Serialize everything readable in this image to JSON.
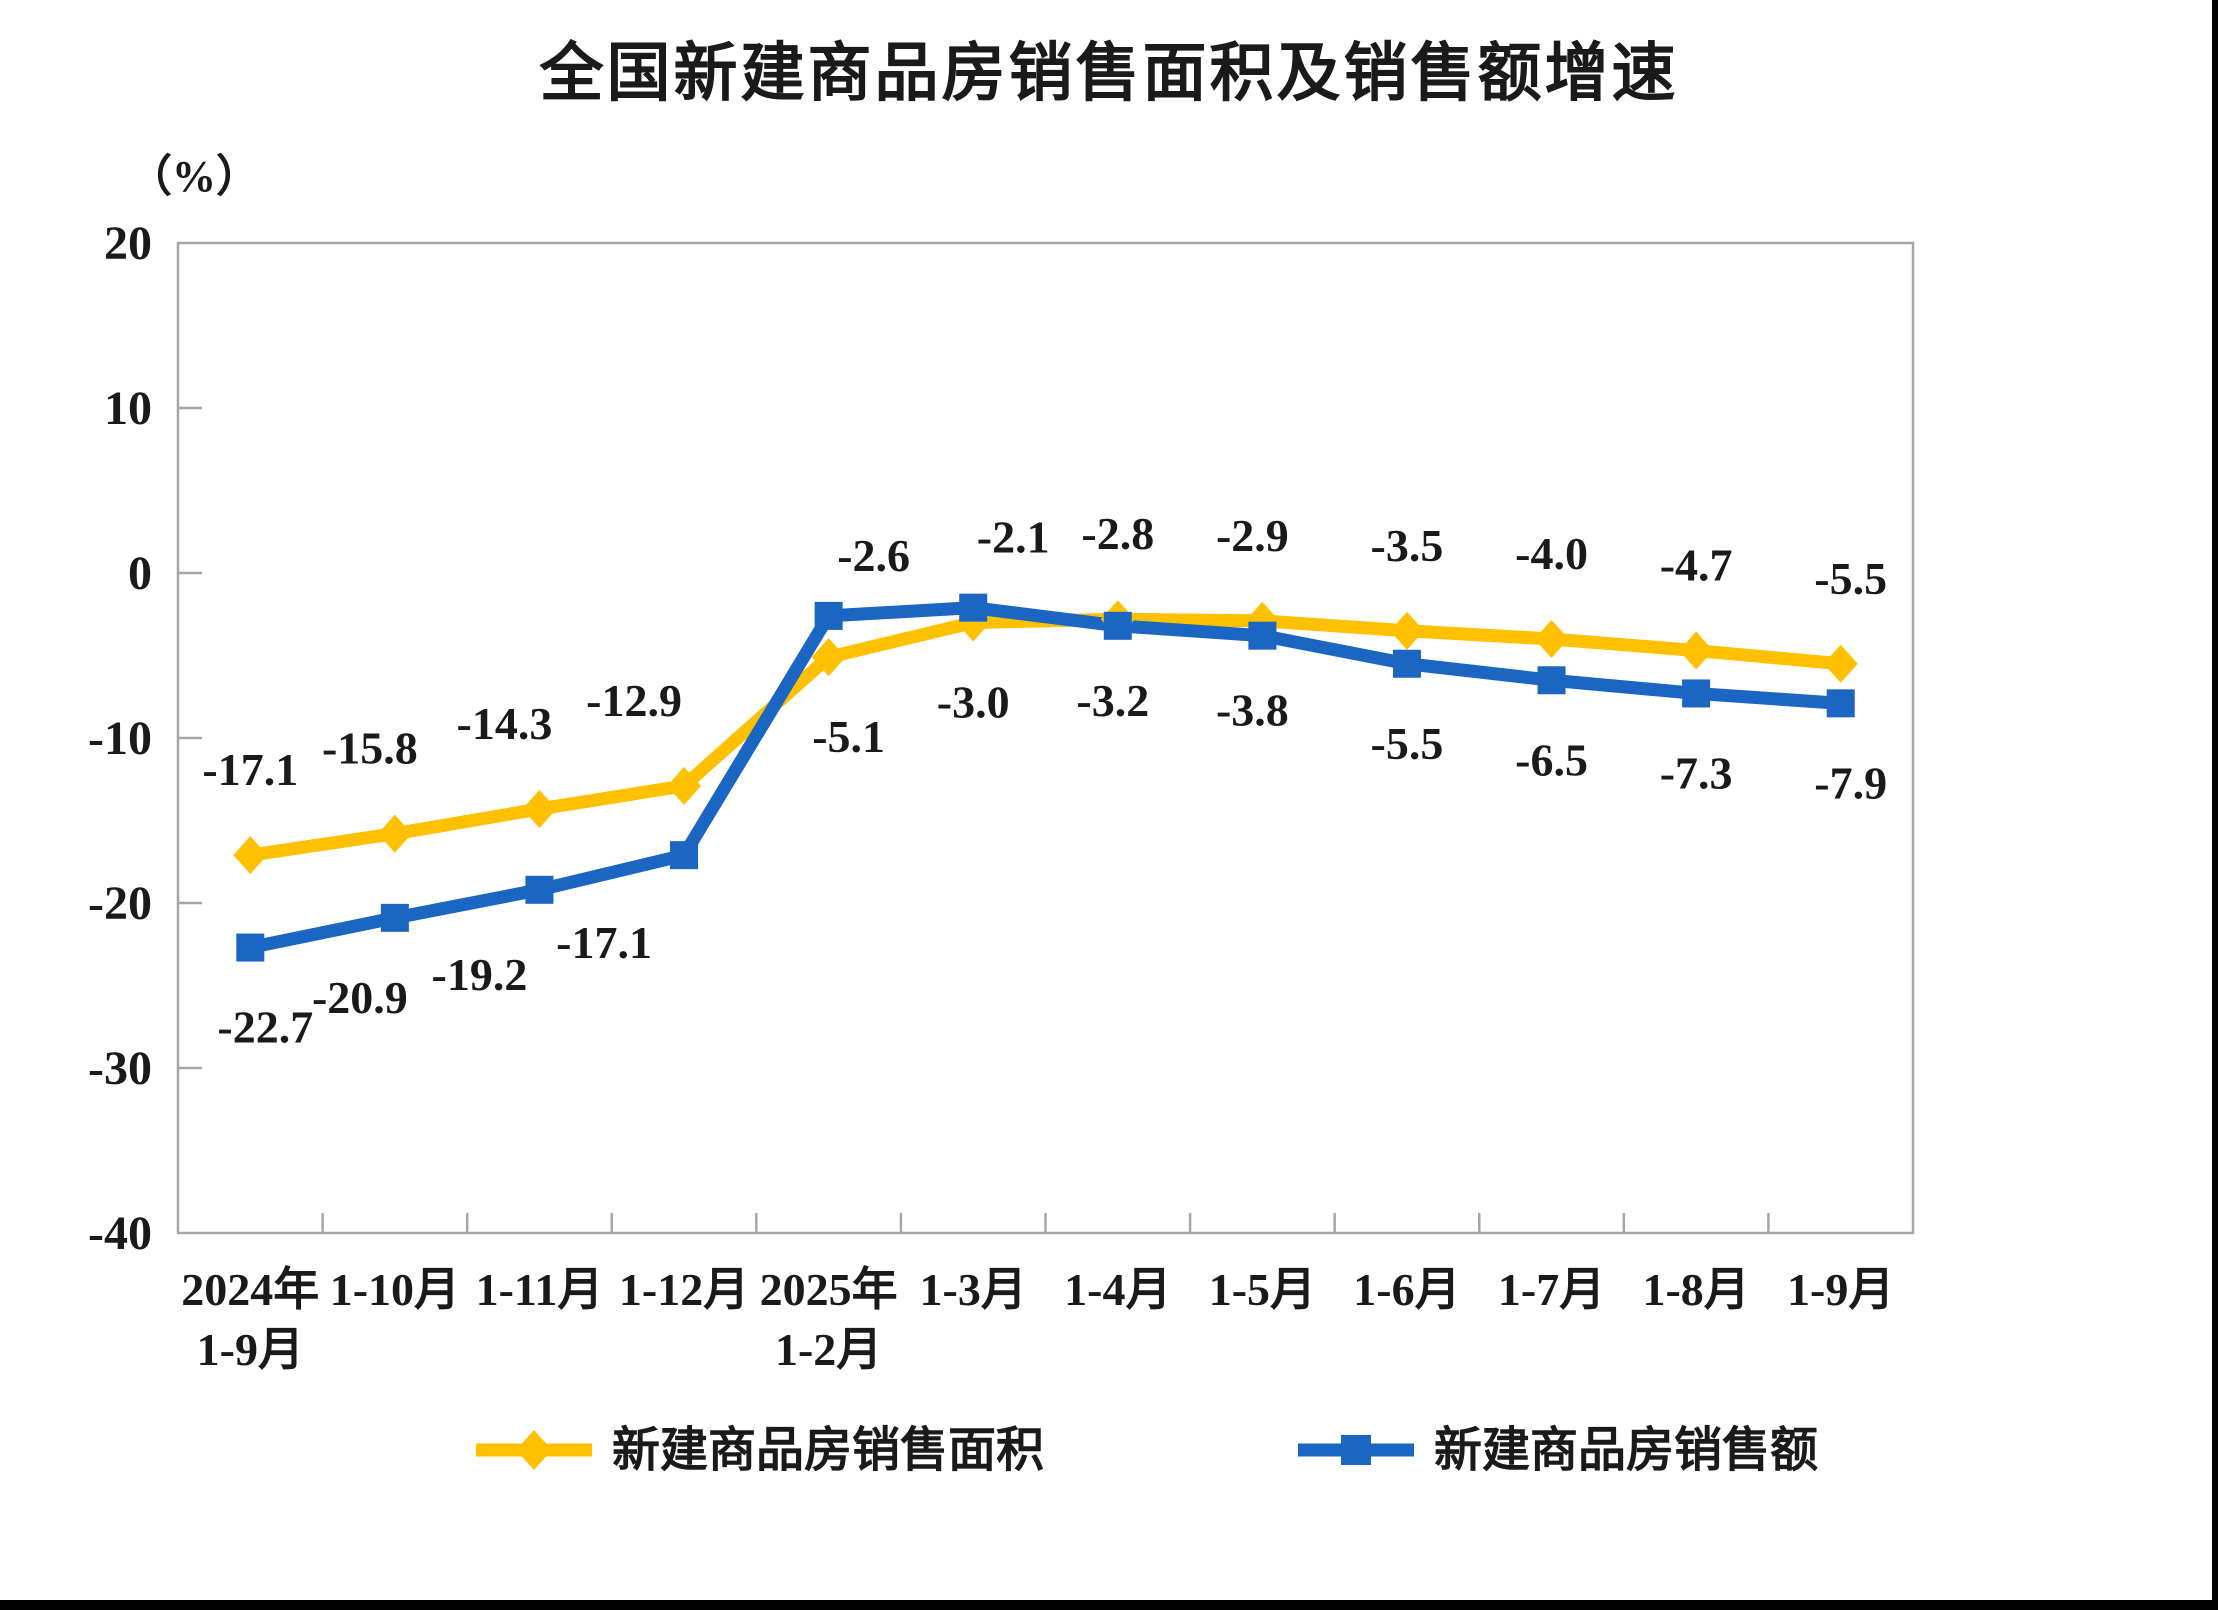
{
  "title": "全国新建商品房销售面积及销售额增速",
  "y_axis_unit": "（%）",
  "colors": {
    "series_area": "#FFC000",
    "series_value": "#1A66C2",
    "axis_line": "#A6A6A6",
    "text": "#1a1a1a",
    "window_edge": "#000000"
  },
  "chart_data": {
    "type": "line",
    "title": "全国新建商品房销售面积及销售额增速",
    "unit_label": "（%）",
    "categories": [
      [
        "2024年",
        "1-9月"
      ],
      [
        "1-10月"
      ],
      [
        "1-11月"
      ],
      [
        "1-12月"
      ],
      [
        "2025年",
        "1-2月"
      ],
      [
        "1-3月"
      ],
      [
        "1-4月"
      ],
      [
        "1-5月"
      ],
      [
        "1-6月"
      ],
      [
        "1-7月"
      ],
      [
        "1-8月"
      ],
      [
        "1-9月"
      ]
    ],
    "y_ticks": [
      20,
      10,
      0,
      -10,
      -20,
      -30,
      -40
    ],
    "ylim": [
      -40,
      20
    ],
    "grid": false,
    "legend_position": "bottom",
    "series": [
      {
        "name": "新建商品房销售面积",
        "color": "#FFC000",
        "marker": "diamond",
        "values": [
          -17.1,
          -15.8,
          -14.3,
          -12.9,
          -5.1,
          -3.0,
          -2.8,
          -2.9,
          -3.5,
          -4.0,
          -4.7,
          -5.5
        ],
        "labels": [
          "-17.1",
          "-15.8",
          "-14.3",
          "-12.9",
          "-5.1",
          "-3.0",
          "-2.8",
          "-2.9",
          "-3.5",
          "-4.0",
          "-4.7",
          "-5.5"
        ],
        "label_side": [
          "above",
          "above",
          "above",
          "above",
          "below",
          "below",
          "above",
          "above",
          "above",
          "above",
          "above",
          "above"
        ]
      },
      {
        "name": "新建商品房销售额",
        "color": "#1A66C2",
        "marker": "square",
        "values": [
          -22.7,
          -20.9,
          -19.2,
          -17.1,
          -2.6,
          -2.1,
          -3.2,
          -3.8,
          -5.5,
          -6.5,
          -7.3,
          -7.9
        ],
        "labels": [
          "-22.7",
          "-20.9",
          "-19.2",
          "-17.1",
          "-2.6",
          "-2.1",
          "-3.2",
          "-3.8",
          "-5.5",
          "-6.5",
          "-7.3",
          "-7.9"
        ],
        "label_side": [
          "below",
          "below",
          "below",
          "below",
          "above",
          "above",
          "below",
          "below",
          "below",
          "below",
          "below",
          "below"
        ]
      }
    ]
  }
}
